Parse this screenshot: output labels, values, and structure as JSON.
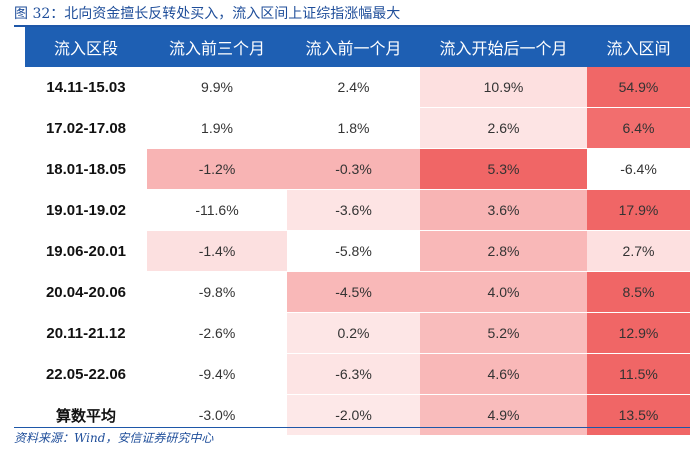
{
  "figure": {
    "title": "图 32：北向资金擅长反转处买入，流入区间上证综指涨幅最大",
    "source": "资料来源：Wind，安信证券研究中心"
  },
  "table": {
    "headers": [
      "流入区段",
      "流入前三个月",
      "流入前一个月",
      "流入开始后一个月",
      "流入区间"
    ],
    "rows": [
      {
        "label": "14.11-15.03",
        "cells": [
          {
            "text": "9.9%",
            "bg": "#ffffff"
          },
          {
            "text": "2.4%",
            "bg": "#ffffff"
          },
          {
            "text": "10.9%",
            "bg": "#fde0e0"
          },
          {
            "text": "54.9%",
            "bg": "#f06767"
          }
        ]
      },
      {
        "label": "17.02-17.08",
        "cells": [
          {
            "text": "1.9%",
            "bg": "#ffffff"
          },
          {
            "text": "1.8%",
            "bg": "#ffffff"
          },
          {
            "text": "2.6%",
            "bg": "#fde4e4"
          },
          {
            "text": "6.4%",
            "bg": "#f26e6e"
          }
        ]
      },
      {
        "label": "18.01-18.05",
        "cells": [
          {
            "text": "-1.2%",
            "bg": "#f8b4b4"
          },
          {
            "text": "-0.3%",
            "bg": "#f8b4b4"
          },
          {
            "text": "5.3%",
            "bg": "#f06666"
          },
          {
            "text": "-6.4%",
            "bg": "#ffffff"
          }
        ]
      },
      {
        "label": "19.01-19.02",
        "cells": [
          {
            "text": "-11.6%",
            "bg": "#ffffff"
          },
          {
            "text": "-3.6%",
            "bg": "#fde4e4"
          },
          {
            "text": "3.6%",
            "bg": "#f8b4b4"
          },
          {
            "text": "17.9%",
            "bg": "#f06666"
          }
        ]
      },
      {
        "label": "19.06-20.01",
        "cells": [
          {
            "text": "-1.4%",
            "bg": "#fce0e0"
          },
          {
            "text": "-5.8%",
            "bg": "#ffffff"
          },
          {
            "text": "2.8%",
            "bg": "#f9b8b8"
          },
          {
            "text": "2.7%",
            "bg": "#fde0e0"
          }
        ]
      },
      {
        "label": "20.04-20.06",
        "cells": [
          {
            "text": "-9.8%",
            "bg": "#ffffff"
          },
          {
            "text": "-4.5%",
            "bg": "#f9b8b8"
          },
          {
            "text": "4.0%",
            "bg": "#f9b8b8"
          },
          {
            "text": "8.5%",
            "bg": "#f06666"
          }
        ]
      },
      {
        "label": "20.11-21.12",
        "cells": [
          {
            "text": "-2.6%",
            "bg": "#ffffff"
          },
          {
            "text": "0.2%",
            "bg": "#fde6e6"
          },
          {
            "text": "5.2%",
            "bg": "#f9bcbc"
          },
          {
            "text": "12.9%",
            "bg": "#f06666"
          }
        ]
      },
      {
        "label": "22.05-22.06",
        "cells": [
          {
            "text": "-9.4%",
            "bg": "#ffffff"
          },
          {
            "text": "-6.3%",
            "bg": "#fde4e4"
          },
          {
            "text": "4.6%",
            "bg": "#f9b8b8"
          },
          {
            "text": "11.5%",
            "bg": "#f06666"
          }
        ]
      },
      {
        "label": "算数平均",
        "cells": [
          {
            "text": "-3.0%",
            "bg": "#ffffff"
          },
          {
            "text": "-2.0%",
            "bg": "#fde8e8"
          },
          {
            "text": "4.9%",
            "bg": "#f9bcbc"
          },
          {
            "text": "13.5%",
            "bg": "#f06666"
          }
        ]
      }
    ]
  }
}
